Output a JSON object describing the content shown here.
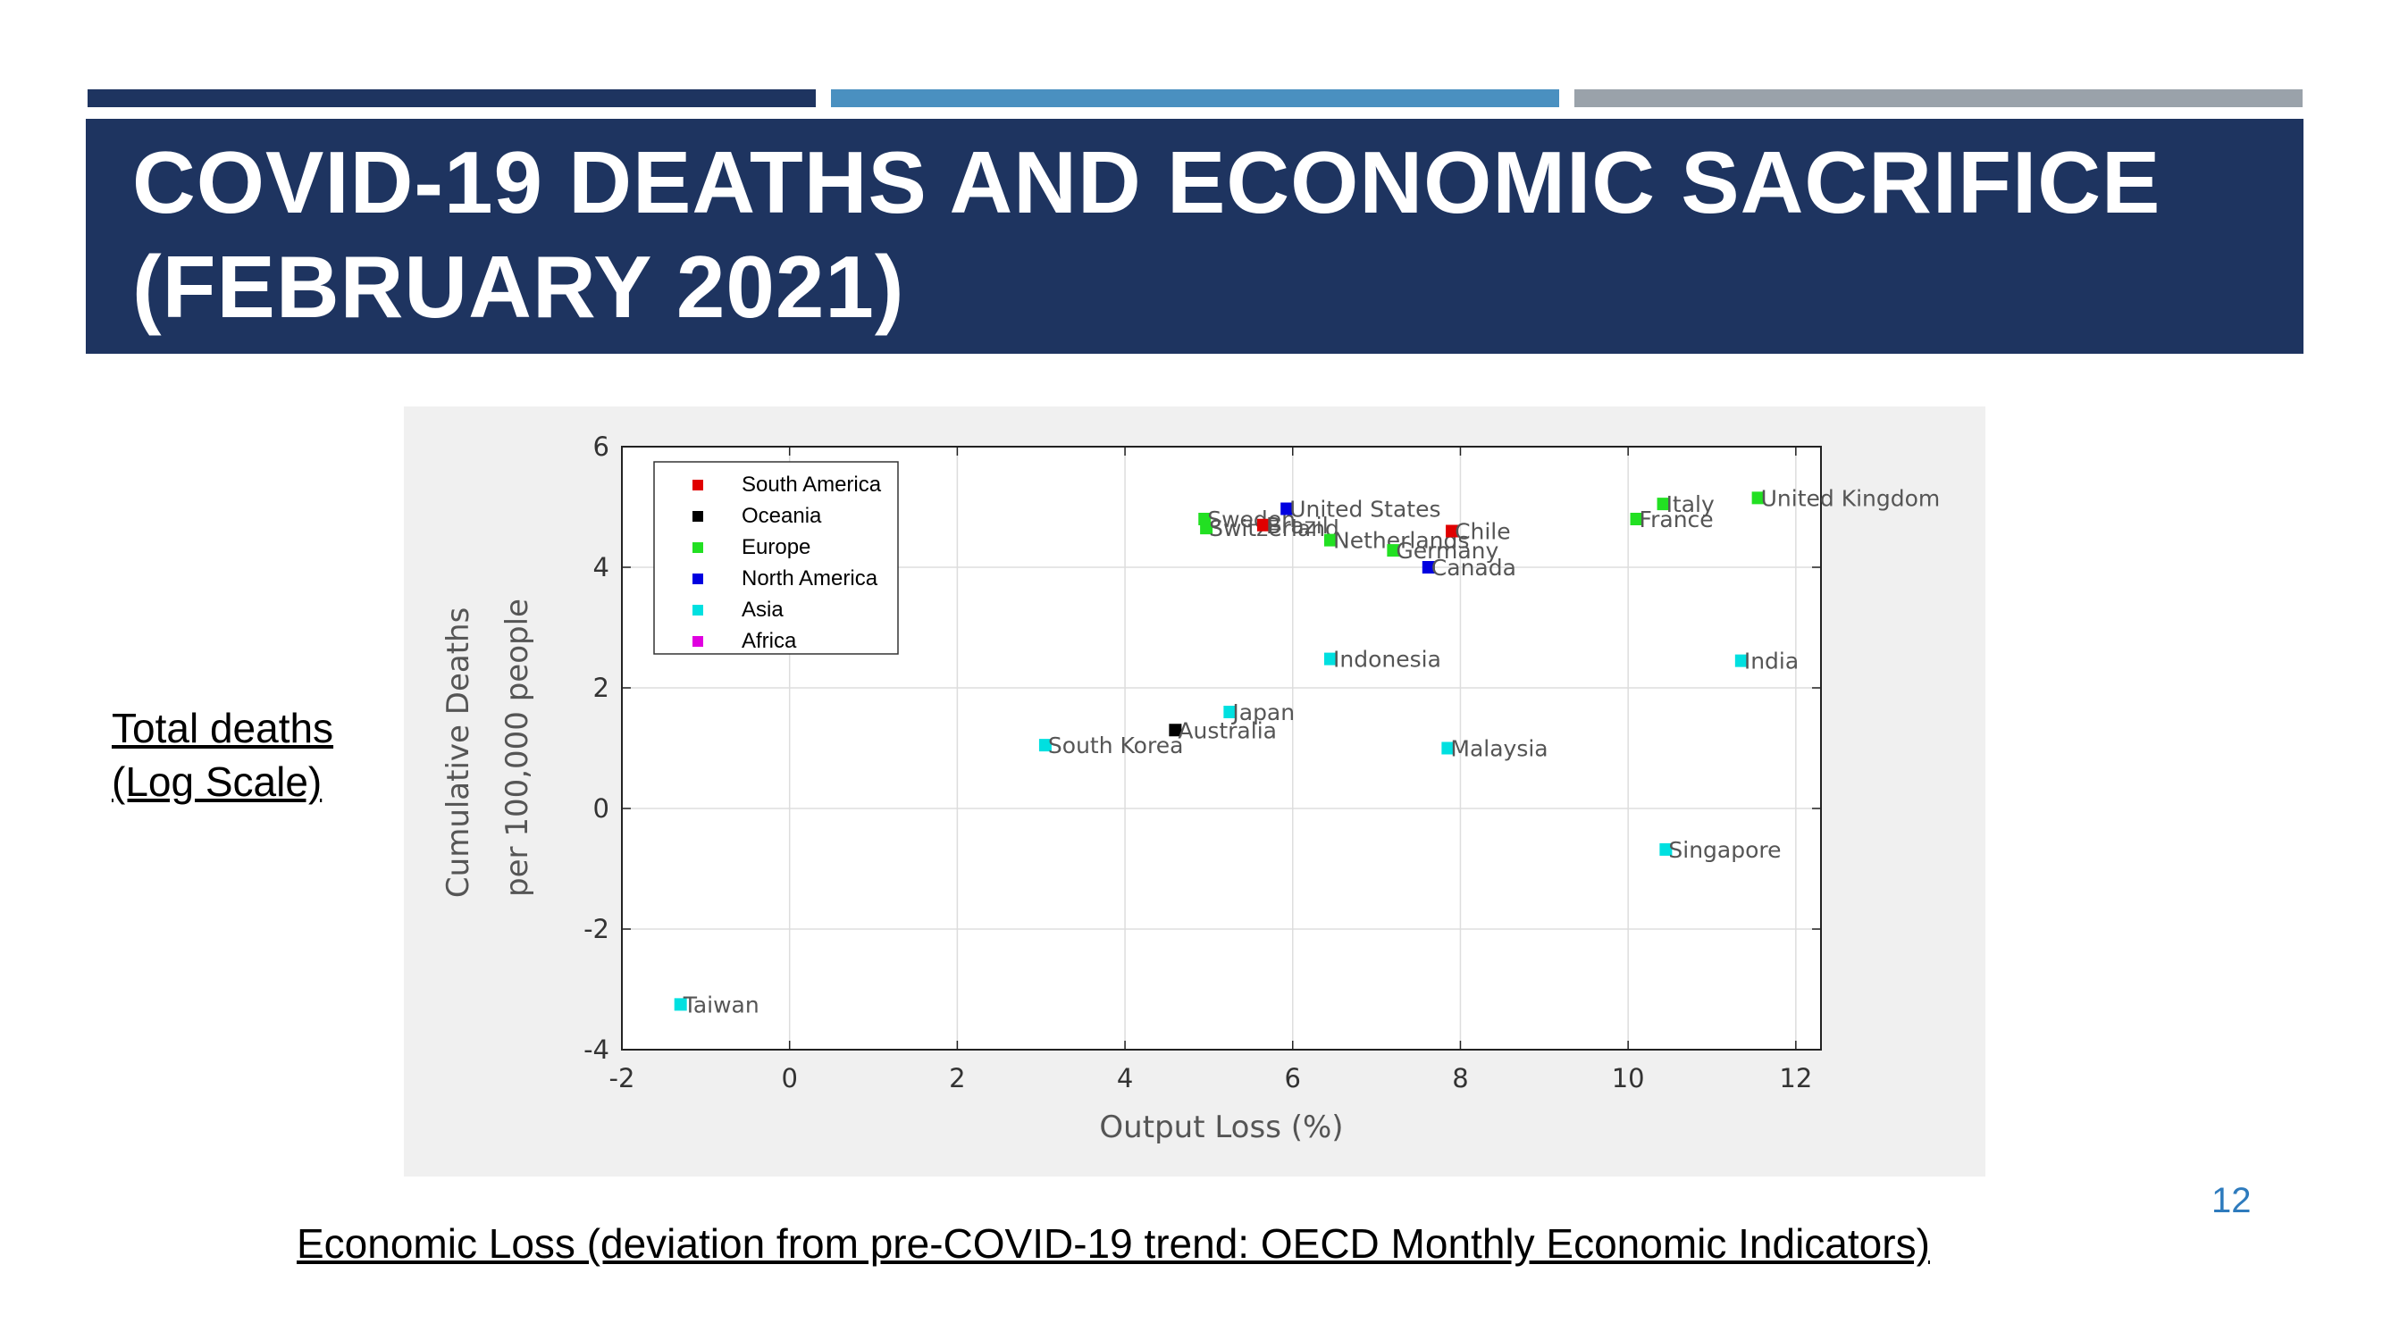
{
  "slide": {
    "title_line1": "COVID-19 DEATHS AND ECONOMIC SACRIFICE",
    "title_line2": "(FEBRUARY 2021)",
    "side_label_line1": "Total deaths",
    "side_label_line2": "(Log Scale)",
    "bottom_caption": "Economic Loss (deviation from pre-COVID-19 trend: OECD Monthly Economic Indicators)",
    "page_number": "12",
    "colors": {
      "header": "#1e3460",
      "accent_blue": "#4a90c0",
      "accent_gray": "#9aa2aa",
      "page_number": "#2e7bbd"
    }
  },
  "chart_data": {
    "type": "scatter",
    "title": "",
    "xlabel": "Output Loss (%)",
    "ylabel_line1": "Cumulative Deaths",
    "ylabel_line2": "per 100,000 people",
    "xlim": [
      -2,
      12.3
    ],
    "ylim": [
      -4,
      6
    ],
    "xticks": [
      -2,
      0,
      2,
      4,
      6,
      8,
      10,
      12
    ],
    "yticks": [
      -4,
      -2,
      0,
      2,
      4,
      6
    ],
    "grid": true,
    "legend_position": "top-left",
    "legend": [
      {
        "name": "South America",
        "color": "#e00000"
      },
      {
        "name": "Oceania",
        "color": "#000000"
      },
      {
        "name": "Europe",
        "color": "#22e022"
      },
      {
        "name": "North America",
        "color": "#0000e0"
      },
      {
        "name": "Asia",
        "color": "#00e0e0"
      },
      {
        "name": "Africa",
        "color": "#e000e0"
      }
    ],
    "points": [
      {
        "label": "Taiwan",
        "x": -1.3,
        "y": -3.25,
        "region": "Asia"
      },
      {
        "label": "South Korea",
        "x": 3.05,
        "y": 1.05,
        "region": "Asia"
      },
      {
        "label": "Australia",
        "x": 4.6,
        "y": 1.3,
        "region": "Oceania"
      },
      {
        "label": "Japan",
        "x": 5.25,
        "y": 1.6,
        "region": "Asia"
      },
      {
        "label": "Sweden",
        "x": 4.95,
        "y": 4.8,
        "region": "Europe"
      },
      {
        "label": "Switzerland",
        "x": 4.97,
        "y": 4.65,
        "region": "Europe"
      },
      {
        "label": "Brazil",
        "x": 5.65,
        "y": 4.7,
        "region": "South America"
      },
      {
        "label": "United States",
        "x": 5.93,
        "y": 4.97,
        "region": "North America"
      },
      {
        "label": "Netherlands",
        "x": 6.45,
        "y": 4.45,
        "region": "Europe"
      },
      {
        "label": "Germany",
        "x": 7.2,
        "y": 4.28,
        "region": "Europe"
      },
      {
        "label": "Canada",
        "x": 7.62,
        "y": 4.0,
        "region": "North America"
      },
      {
        "label": "Chile",
        "x": 7.9,
        "y": 4.6,
        "region": "South America"
      },
      {
        "label": "Indonesia",
        "x": 6.45,
        "y": 2.48,
        "region": "Asia"
      },
      {
        "label": "Malaysia",
        "x": 7.85,
        "y": 1.0,
        "region": "Asia"
      },
      {
        "label": "France",
        "x": 10.1,
        "y": 4.8,
        "region": "Europe"
      },
      {
        "label": "Italy",
        "x": 10.42,
        "y": 5.05,
        "region": "Europe"
      },
      {
        "label": "United Kingdom",
        "x": 11.55,
        "y": 5.15,
        "region": "Europe"
      },
      {
        "label": "India",
        "x": 11.35,
        "y": 2.45,
        "region": "Asia"
      },
      {
        "label": "Singapore",
        "x": 10.45,
        "y": -0.68,
        "region": "Asia"
      }
    ]
  }
}
